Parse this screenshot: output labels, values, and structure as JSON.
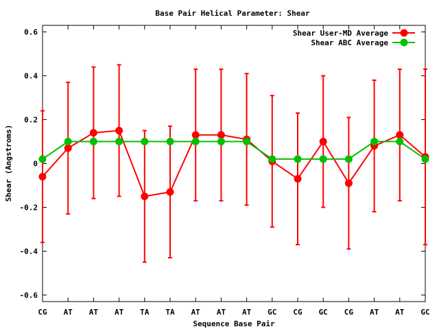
{
  "chart_data": {
    "type": "line",
    "title": "Base Pair Helical Parameter: Shear",
    "xlabel": "Sequence Base Pair",
    "ylabel": "Shear (Angstroms)",
    "ylim": [
      -0.63,
      0.63
    ],
    "yticks": [
      -0.6,
      -0.4,
      -0.2,
      0,
      0.2,
      0.4,
      0.6
    ],
    "ytick_labels": [
      "-0.6",
      "-0.4",
      "-0.2",
      "0",
      "0.2",
      "0.4",
      "0.6"
    ],
    "categories": [
      "CG",
      "AT",
      "AT",
      "AT",
      "TA",
      "TA",
      "AT",
      "AT",
      "AT",
      "GC",
      "CG",
      "GC",
      "CG",
      "AT",
      "AT",
      "GC"
    ],
    "grid": false,
    "legend_position": "top-right",
    "series": [
      {
        "name": "Shear User-MD Average",
        "color": "#ff0000",
        "values": [
          -0.06,
          0.07,
          0.14,
          0.15,
          -0.15,
          -0.13,
          0.13,
          0.13,
          0.11,
          0.01,
          -0.07,
          0.1,
          -0.09,
          0.08,
          0.13,
          0.03
        ],
        "error": [
          0.3,
          0.3,
          0.3,
          0.3,
          0.3,
          0.3,
          0.3,
          0.3,
          0.3,
          0.3,
          0.3,
          0.3,
          0.3,
          0.3,
          0.3,
          0.4
        ]
      },
      {
        "name": "Shear ABC Average",
        "color": "#00c000",
        "values": [
          0.02,
          0.1,
          0.1,
          0.1,
          0.1,
          0.1,
          0.1,
          0.1,
          0.1,
          0.02,
          0.02,
          0.02,
          0.02,
          0.1,
          0.1,
          0.02
        ]
      }
    ]
  }
}
